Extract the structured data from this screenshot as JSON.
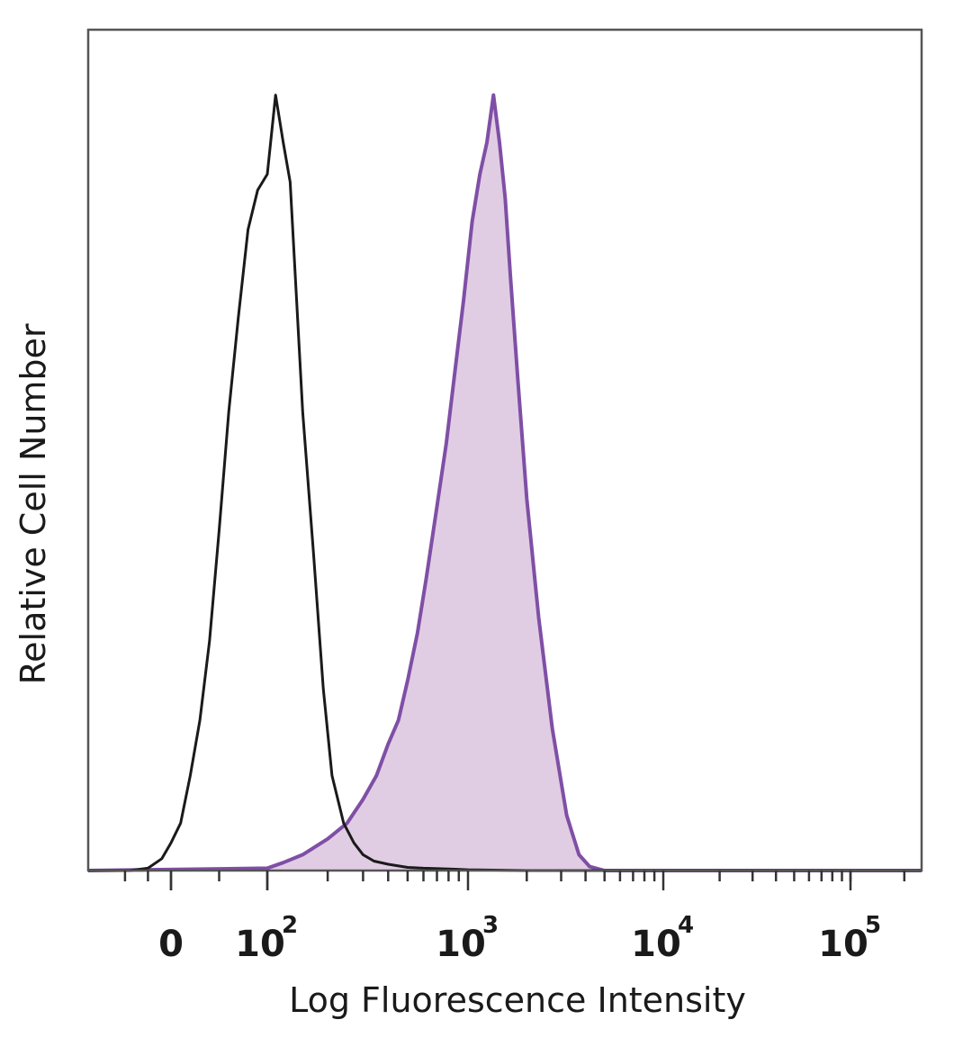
{
  "chart_data": {
    "type": "area",
    "title": "",
    "xlabel": "Log Fluorescence Intensity",
    "ylabel": "Relative Cell Number",
    "x_scale": "biexponential (log decades)",
    "xlim": [
      -180,
      250000
    ],
    "ylim": [
      0,
      100
    ],
    "grid": false,
    "legend": "none",
    "x_ticks": [
      {
        "value": 0,
        "base": "0",
        "exp": ""
      },
      {
        "value": 100,
        "base": "10",
        "exp": "2"
      },
      {
        "value": 1000,
        "base": "10",
        "exp": "3"
      },
      {
        "value": 10000,
        "base": "10",
        "exp": "4"
      },
      {
        "value": 100000,
        "base": "10",
        "exp": "5"
      }
    ],
    "series": [
      {
        "role": "control",
        "style": "outline",
        "color": "#1a1a1a",
        "x": [
          -180,
          -90,
          -50,
          -20,
          0,
          10,
          20,
          30,
          40,
          50,
          60,
          70,
          80,
          90,
          100,
          110,
          120,
          130,
          140,
          150,
          170,
          190,
          210,
          240,
          270,
          300,
          340,
          400,
          500,
          600,
          800,
          1000,
          2000,
          5000,
          20000,
          250000
        ],
        "y": [
          0,
          0,
          0.3,
          1.5,
          3.5,
          6,
          12,
          19,
          29,
          43,
          58,
          70,
          81,
          86,
          88,
          98,
          92,
          87,
          72,
          58,
          40,
          23,
          12,
          6,
          3.5,
          2,
          1.2,
          0.8,
          0.4,
          0.3,
          0.2,
          0.1,
          0,
          0,
          0,
          0
        ]
      },
      {
        "role": "stained",
        "style": "filled",
        "color": "#7f4fa6",
        "fill": "#e1cde3",
        "x": [
          -180,
          100,
          120,
          150,
          200,
          250,
          300,
          350,
          400,
          450,
          500,
          560,
          620,
          700,
          780,
          860,
          950,
          1050,
          1150,
          1250,
          1350,
          1450,
          1550,
          1650,
          1800,
          2000,
          2300,
          2700,
          3200,
          3700,
          4200,
          5000,
          10000,
          250000
        ],
        "y": [
          0,
          0.3,
          1,
          2,
          4,
          6,
          9,
          12,
          16,
          19,
          24,
          30,
          37,
          46,
          54,
          63,
          72,
          82,
          88,
          92,
          98,
          92,
          85,
          75,
          62,
          47,
          32,
          18,
          7,
          2,
          0.5,
          0,
          0,
          0
        ]
      }
    ]
  }
}
